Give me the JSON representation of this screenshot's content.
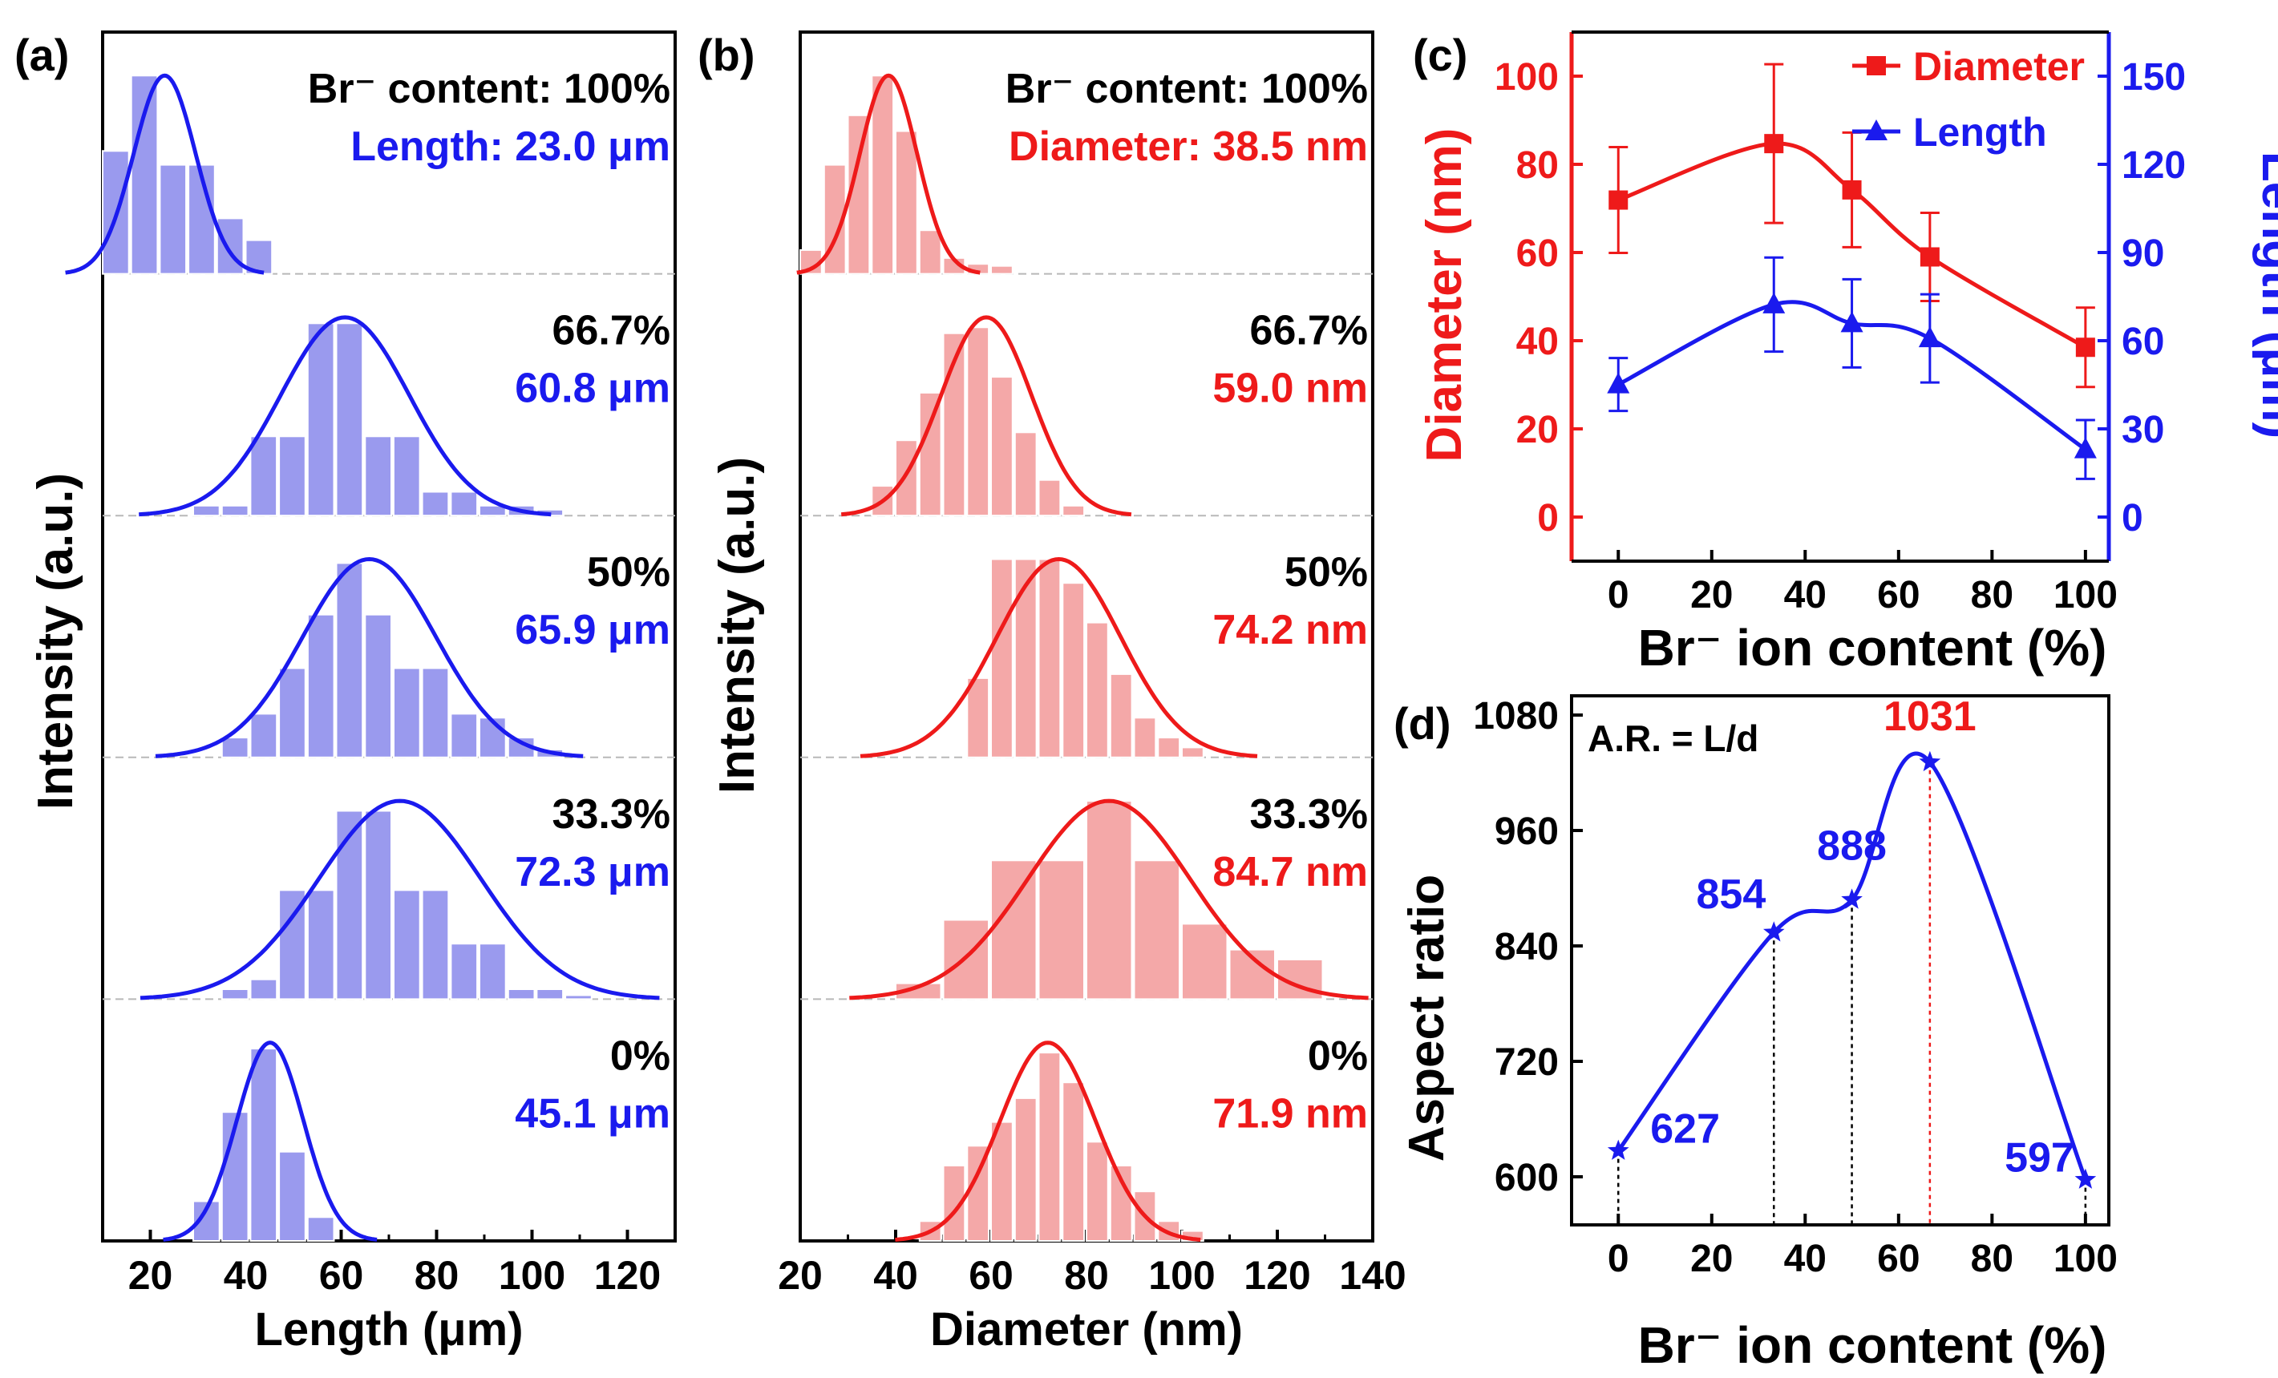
{
  "chart_data": [
    {
      "panel": "(a)",
      "type": "bar",
      "subtype": "stacked-histograms-with-gaussian-fits",
      "xlabel": "Length (μm)",
      "ylabel": "Intensity (a.u.)",
      "xlim": [
        10,
        130
      ],
      "xticks": [
        "20",
        "40",
        "60",
        "80",
        "100",
        "120"
      ],
      "bin_width": 6,
      "color": "#1a1aee",
      "bar_color": "#9a9aee",
      "header_prefix": "Br⁻ content: ",
      "header_value_prefix": "Length: ",
      "rows": [
        {
          "content": "100%",
          "value_label": "23.0 μm",
          "mean": 23.0,
          "sigma": 6.5,
          "bins": [
            13,
            19,
            25,
            31,
            37,
            43
          ],
          "values": [
            0.62,
            1.0,
            0.55,
            0.55,
            0.28,
            0.17
          ]
        },
        {
          "content": "66.7%",
          "value_label": "60.8 μm",
          "mean": 60.8,
          "sigma": 13.5,
          "bins": [
            32,
            38,
            44,
            50,
            56,
            62,
            68,
            74,
            80,
            86,
            92,
            98,
            104
          ],
          "values": [
            0.05,
            0.05,
            0.4,
            0.4,
            0.97,
            0.97,
            0.4,
            0.4,
            0.12,
            0.12,
            0.05,
            0.05,
            0.03
          ]
        },
        {
          "content": "50%",
          "value_label": "65.9 μm",
          "mean": 65.9,
          "sigma": 14.0,
          "bins": [
            38,
            44,
            50,
            56,
            62,
            68,
            74,
            80,
            86,
            92,
            98,
            104
          ],
          "values": [
            0.1,
            0.22,
            0.45,
            0.72,
            0.98,
            0.72,
            0.45,
            0.45,
            0.22,
            0.2,
            0.1,
            0.04
          ]
        },
        {
          "content": "33.3%",
          "value_label": "72.3 μm",
          "mean": 72.3,
          "sigma": 17.0,
          "bins": [
            38,
            44,
            50,
            56,
            62,
            68,
            74,
            80,
            86,
            92,
            98,
            104,
            110
          ],
          "values": [
            0.05,
            0.1,
            0.55,
            0.55,
            0.95,
            0.95,
            0.55,
            0.55,
            0.28,
            0.28,
            0.05,
            0.05,
            0.02
          ]
        },
        {
          "content": "0%",
          "value_label": "45.1 μm",
          "mean": 45.1,
          "sigma": 7.0,
          "bins": [
            32,
            38,
            44,
            50,
            56
          ],
          "values": [
            0.2,
            0.65,
            0.97,
            0.45,
            0.12
          ]
        }
      ]
    },
    {
      "panel": "(b)",
      "type": "bar",
      "subtype": "stacked-histograms-with-gaussian-fits",
      "xlabel": "Diameter (nm)",
      "ylabel": "Intensity (a.u.)",
      "xlim": [
        20,
        140
      ],
      "xticks": [
        "20",
        "40",
        "60",
        "80",
        "100",
        "120",
        "140"
      ],
      "bin_width": 5,
      "color": "#ee1a1a",
      "bar_color": "#f4a8a8",
      "header_prefix": "Br⁻ content: ",
      "header_value_prefix": "Diameter: ",
      "rows": [
        {
          "content": "100%",
          "value_label": "38.5 nm",
          "mean": 38.5,
          "sigma": 6.0,
          "bins": [
            22.5,
            27.5,
            32.5,
            37.5,
            42.5,
            47.5,
            52.5,
            57.5,
            62.5
          ],
          "values": [
            0.12,
            0.55,
            0.8,
            1.0,
            0.72,
            0.22,
            0.08,
            0.05,
            0.04
          ]
        },
        {
          "content": "66.7%",
          "value_label": "59.0 nm",
          "mean": 59.0,
          "sigma": 9.5,
          "bins": [
            37.5,
            42.5,
            47.5,
            52.5,
            57.5,
            62.5,
            67.5,
            72.5,
            77.5
          ],
          "values": [
            0.15,
            0.38,
            0.62,
            0.92,
            0.95,
            0.7,
            0.42,
            0.18,
            0.05
          ]
        },
        {
          "content": "50%",
          "value_label": "74.2 nm",
          "mean": 74.2,
          "sigma": 13.0,
          "bins": [
            57.5,
            62.5,
            67.5,
            72.5,
            77.5,
            82.5,
            87.5,
            92.5,
            97.5,
            102.5
          ],
          "values": [
            0.4,
            1.0,
            1.0,
            1.0,
            0.88,
            0.68,
            0.42,
            0.2,
            0.1,
            0.05
          ]
        },
        {
          "content": "33.3%",
          "value_label": "84.7 nm",
          "mean": 84.7,
          "sigma": 17.0,
          "bins": [
            45,
            55,
            65,
            75,
            85,
            95,
            105,
            115,
            125
          ],
          "values": [
            0.08,
            0.4,
            0.7,
            0.7,
            1.0,
            0.7,
            0.38,
            0.25,
            0.2
          ]
        },
        {
          "content": "0%",
          "value_label": "71.9 nm",
          "mean": 71.9,
          "sigma": 10.0,
          "bins": [
            47.5,
            52.5,
            57.5,
            62.5,
            67.5,
            72.5,
            77.5,
            82.5,
            87.5,
            92.5,
            97.5,
            102.5
          ],
          "values": [
            0.1,
            0.38,
            0.48,
            0.6,
            0.72,
            0.95,
            0.8,
            0.5,
            0.38,
            0.25,
            0.1,
            0.05
          ]
        }
      ]
    },
    {
      "panel": "(c)",
      "type": "line",
      "xlabel": "Br⁻ ion content (%)",
      "xlim": [
        -10,
        105
      ],
      "xticks": [
        "0",
        "20",
        "40",
        "60",
        "80",
        "100"
      ],
      "ylabel_left": "Diameter (nm)",
      "ylim_left": [
        -10,
        110
      ],
      "yticks_left": [
        "0",
        "20",
        "40",
        "60",
        "80",
        "100"
      ],
      "ylabel_right": "Length (μm)",
      "ylim_right": [
        -15,
        165
      ],
      "yticks_right": [
        "0",
        "30",
        "60",
        "90",
        "120",
        "150"
      ],
      "x": [
        0,
        33.3,
        50,
        66.7,
        100
      ],
      "series": [
        {
          "name": "Diameter",
          "axis": "left",
          "marker": "square",
          "color": "#ee1a1a",
          "values": [
            71.9,
            84.7,
            74.2,
            59.0,
            38.5
          ],
          "errors": [
            12,
            18,
            13,
            10,
            9
          ]
        },
        {
          "name": "Length",
          "axis": "right",
          "marker": "triangle",
          "color": "#1a1aee",
          "values": [
            45.1,
            72.3,
            65.9,
            60.8,
            23.0
          ],
          "errors": [
            9,
            16,
            15,
            15,
            10
          ]
        }
      ],
      "legend": "top-right"
    },
    {
      "panel": "(d)",
      "type": "line",
      "xlabel": "Br⁻ ion content (%)",
      "ylabel": "Aspect ratio",
      "xlim": [
        -10,
        105
      ],
      "xticks": [
        "0",
        "20",
        "40",
        "60",
        "80",
        "100"
      ],
      "ylim": [
        550,
        1100
      ],
      "yticks": [
        "600",
        "720",
        "840",
        "960",
        "1080"
      ],
      "annotation": "A.R. = L/d",
      "x": [
        0,
        33.3,
        50,
        66.7,
        100
      ],
      "values": [
        627,
        854,
        888,
        1031,
        597
      ],
      "point_labels": [
        "627",
        "854",
        "888",
        "1031",
        "597"
      ],
      "max_label": "1031",
      "color": "#1a1aee",
      "highlight_color": "#ee1a1a",
      "marker": "star"
    }
  ],
  "panel_labels": [
    "(a)",
    "(b)",
    "(c)",
    "(d)"
  ]
}
